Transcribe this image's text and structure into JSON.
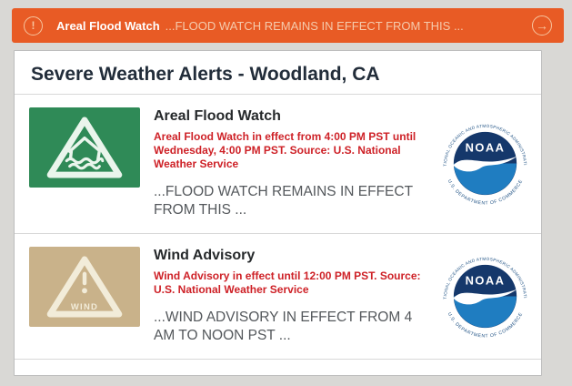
{
  "colors": {
    "background": "#d9d8d5",
    "banner": "#e85b25",
    "banner_icon": "#f6c49e",
    "banner_muted": "#f5cbad",
    "panel_border": "#bdbdbd",
    "divider": "#d8d8d8",
    "title": "#222d3a",
    "alert_title": "#26292b",
    "alert_detail_red": "#ce2127",
    "alert_summary": "#54585c",
    "flood_icon_bg": "#2f8a57",
    "flood_mark": "#eaf5ec",
    "wind_icon_bg": "#c9b28a",
    "icon_mark": "#f2ecd9",
    "noaa_navy": "#15386b",
    "noaa_blue": "#1f7dc1",
    "noaa_ring": "#1d5083"
  },
  "banner": {
    "warning_glyph": "!",
    "title": "Areal Flood Watch",
    "message": "...FLOOD WATCH REMAINS IN EFFECT FROM THIS ...",
    "arrow_glyph": "→"
  },
  "panel": {
    "title": "Severe Weather Alerts - Woodland, CA"
  },
  "alerts": [
    {
      "title": "Areal Flood Watch",
      "details": "Areal Flood Watch in effect from 4:00 PM PST until Wednesday, 4:00 PM PST. Source: U.S. National Weather Service",
      "summary": "...FLOOD WATCH REMAINS IN EFFECT FROM THIS ...",
      "icon": "flood-watch-icon"
    },
    {
      "title": "Wind Advisory",
      "details": "Wind Advisory in effect until 12:00 PM PST. Source: U.S. National Weather Service",
      "summary": "...WIND ADVISORY IN EFFECT FROM 4 AM TO NOON PST ...",
      "icon": "wind-advisory-icon",
      "wind_label": "WIND"
    }
  ],
  "noaa": {
    "label": "NOAA",
    "ring_top": "NATIONAL OCEANIC AND ATMOSPHERIC ADMINISTRATION",
    "ring_bottom": "U.S. DEPARTMENT OF COMMERCE"
  }
}
